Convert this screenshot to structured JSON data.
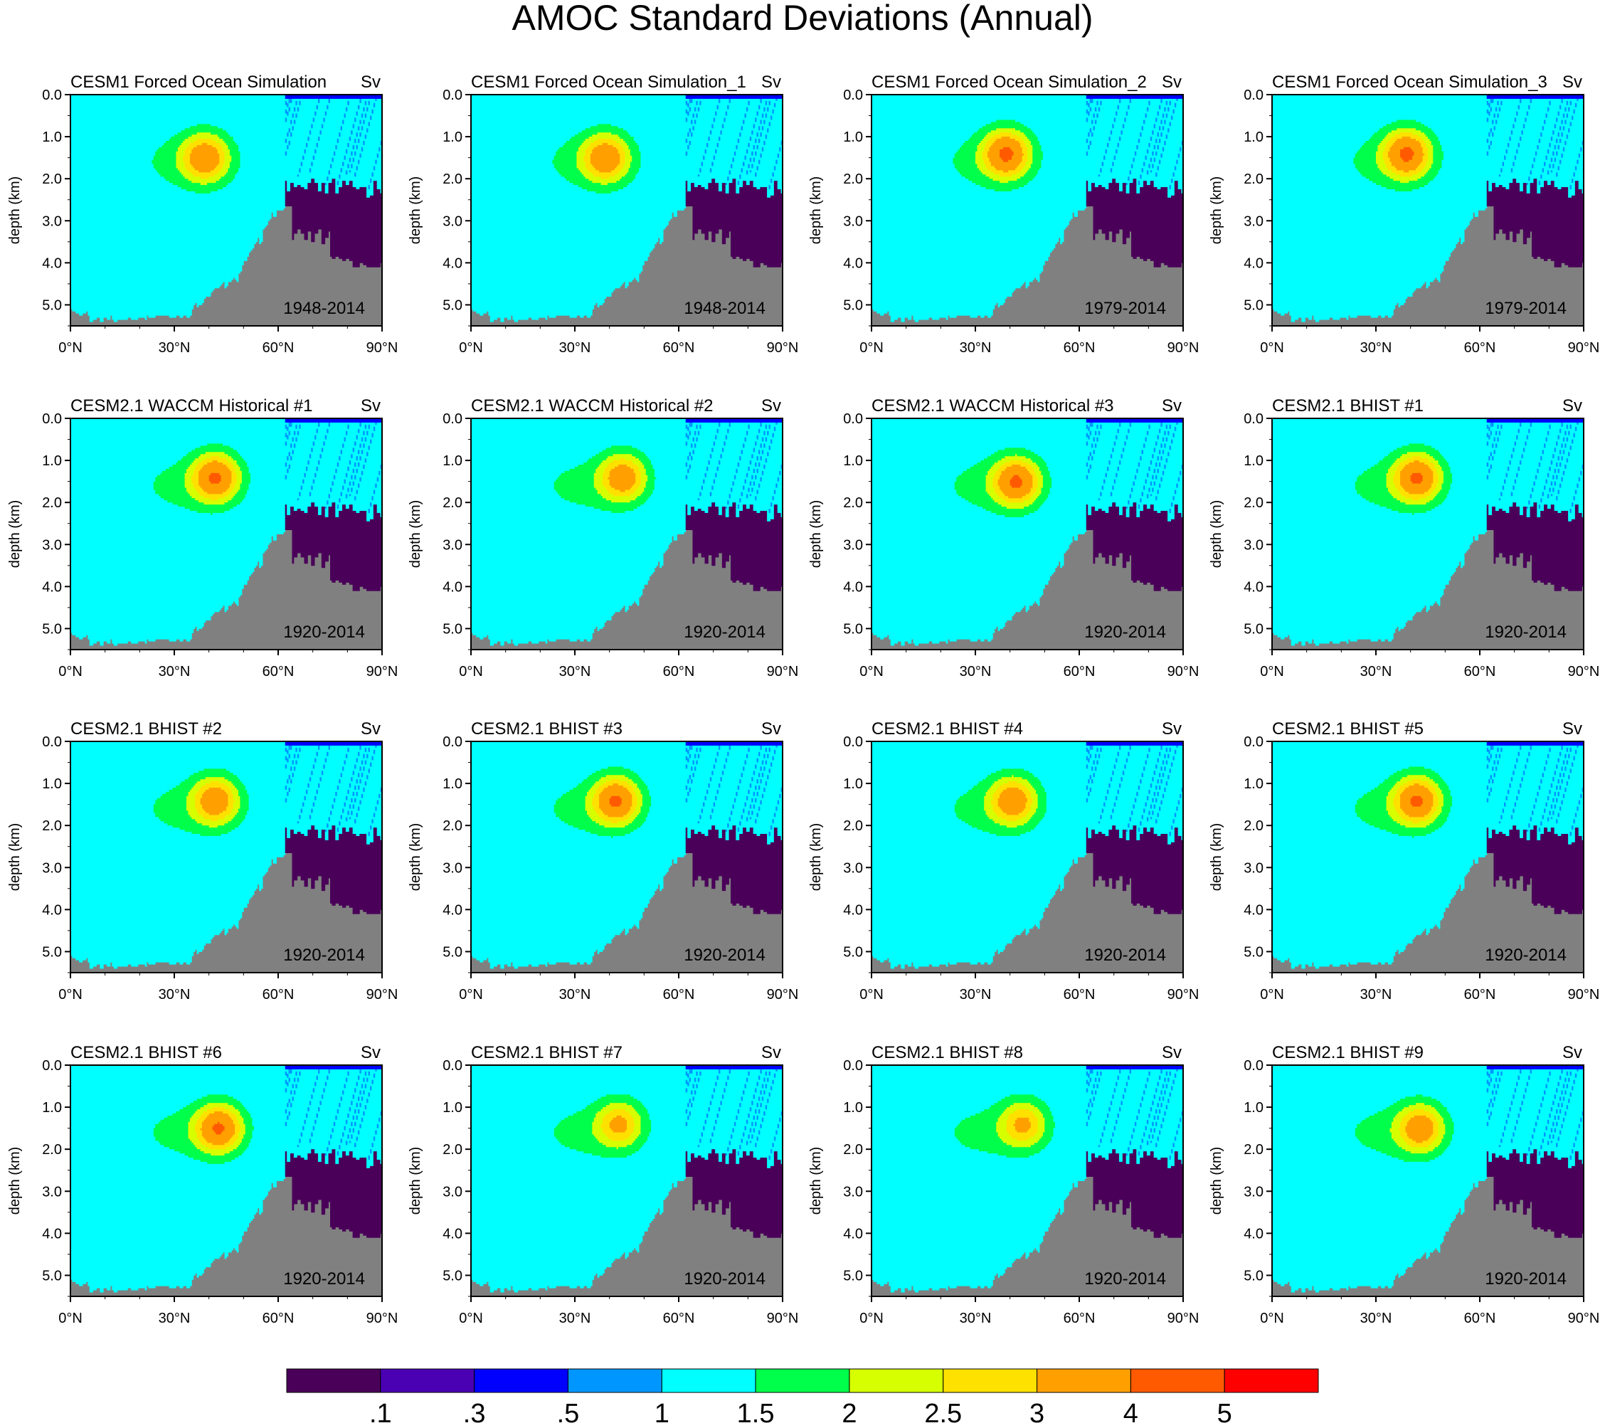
{
  "title": "AMOC Standard Deviations (Annual)",
  "colorbar": {
    "colors": [
      "#4a0059",
      "#4a00b3",
      "#0000ff",
      "#0096ff",
      "#00ffff",
      "#00ff4b",
      "#d6ff00",
      "#ffe100",
      "#ffa000",
      "#ff5a00",
      "#ff0000"
    ],
    "labels": [
      ".1",
      ".3",
      ".5",
      "1",
      "1.5",
      "2",
      "2.5",
      "3",
      "4",
      "5"
    ]
  },
  "chart_data": {
    "type": "heatmap",
    "variable": "AMOC standard deviation",
    "units": "Sv",
    "levels": [
      0.1,
      0.3,
      0.5,
      1,
      1.5,
      2,
      2.5,
      3,
      4,
      5
    ],
    "ylabel": "depth (km)",
    "ylim": [
      5.5,
      0
    ],
    "xlim": [
      0,
      90
    ],
    "yticks": [
      "0.0",
      "1.0",
      "2.0",
      "3.0",
      "4.0",
      "5.0"
    ],
    "xticks": [
      "0°N",
      "30°N",
      "60°N",
      "90°N"
    ],
    "panels": [
      {
        "title": "CESM1 Forced Ocean Simulation",
        "units": "Sv",
        "period": "1948-2014",
        "peak_sv": 2.5,
        "core_lat": 39,
        "core_depth_km": 1.5
      },
      {
        "title": "CESM1 Forced Ocean Simulation_1",
        "units": "Sv",
        "period": "1948-2014",
        "peak_sv": 2.5,
        "core_lat": 39,
        "core_depth_km": 1.5
      },
      {
        "title": "CESM1 Forced Ocean Simulation_2",
        "units": "Sv",
        "period": "1979-2014",
        "peak_sv": 3.0,
        "core_lat": 39,
        "core_depth_km": 1.4
      },
      {
        "title": "CESM1 Forced Ocean Simulation_3",
        "units": "Sv",
        "period": "1979-2014",
        "peak_sv": 3.0,
        "core_lat": 39,
        "core_depth_km": 1.4
      },
      {
        "title": "CESM2.1 WACCM Historical #1",
        "units": "Sv",
        "period": "1920-2014",
        "peak_sv": 3.0,
        "core_lat": 42,
        "core_depth_km": 1.4
      },
      {
        "title": "CESM2.1 WACCM Historical #2",
        "units": "Sv",
        "period": "1920-2014",
        "peak_sv": 2.5,
        "core_lat": 44,
        "core_depth_km": 1.4
      },
      {
        "title": "CESM2.1 WACCM Historical #3",
        "units": "Sv",
        "period": "1920-2014",
        "peak_sv": 3.0,
        "core_lat": 42,
        "core_depth_km": 1.5
      },
      {
        "title": "CESM2.1 BHIST #1",
        "units": "Sv",
        "period": "1920-2014",
        "peak_sv": 3.0,
        "core_lat": 42,
        "core_depth_km": 1.4
      },
      {
        "title": "CESM2.1 BHIST #2",
        "units": "Sv",
        "period": "1920-2014",
        "peak_sv": 2.5,
        "core_lat": 42,
        "core_depth_km": 1.4
      },
      {
        "title": "CESM2.1 BHIST #3",
        "units": "Sv",
        "period": "1920-2014",
        "peak_sv": 3.0,
        "core_lat": 42,
        "core_depth_km": 1.4
      },
      {
        "title": "CESM2.1 BHIST #4",
        "units": "Sv",
        "period": "1920-2014",
        "peak_sv": 2.5,
        "core_lat": 41,
        "core_depth_km": 1.4
      },
      {
        "title": "CESM2.1 BHIST #5",
        "units": "Sv",
        "period": "1920-2014",
        "peak_sv": 3.0,
        "core_lat": 42,
        "core_depth_km": 1.4
      },
      {
        "title": "CESM2.1 BHIST #6",
        "units": "Sv",
        "period": "1920-2014",
        "peak_sv": 3.0,
        "core_lat": 43,
        "core_depth_km": 1.5
      },
      {
        "title": "CESM2.1 BHIST #7",
        "units": "Sv",
        "period": "1920-2014",
        "peak_sv": 2.0,
        "core_lat": 43,
        "core_depth_km": 1.4
      },
      {
        "title": "CESM2.1 BHIST #8",
        "units": "Sv",
        "period": "1920-2014",
        "peak_sv": 2.0,
        "core_lat": 44,
        "core_depth_km": 1.4
      },
      {
        "title": "CESM2.1 BHIST #9",
        "units": "Sv",
        "period": "1920-2014",
        "peak_sv": 2.5,
        "core_lat": 43,
        "core_depth_km": 1.5
      }
    ]
  }
}
